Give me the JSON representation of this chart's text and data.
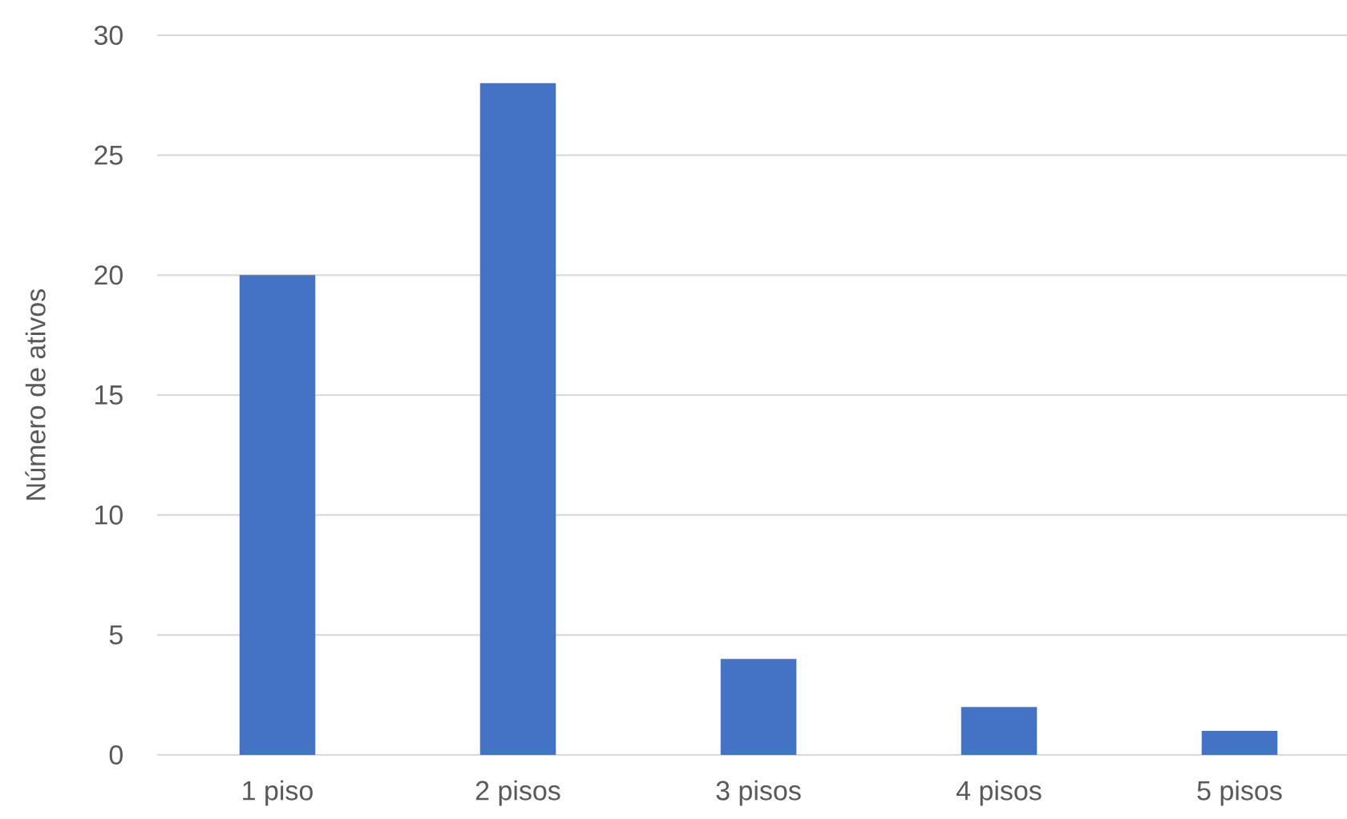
{
  "chart_data": {
    "type": "bar",
    "ylabel": "Número de ativos",
    "categories": [
      "1 piso",
      "2 pisos",
      "3 pisos",
      "4 pisos",
      "5 pisos"
    ],
    "values": [
      20,
      28,
      4,
      2,
      1
    ],
    "color": "#4472c4",
    "ylim": [
      0,
      30
    ],
    "yticks": [
      0,
      5,
      10,
      15,
      20,
      25,
      30
    ],
    "grid": "y"
  }
}
